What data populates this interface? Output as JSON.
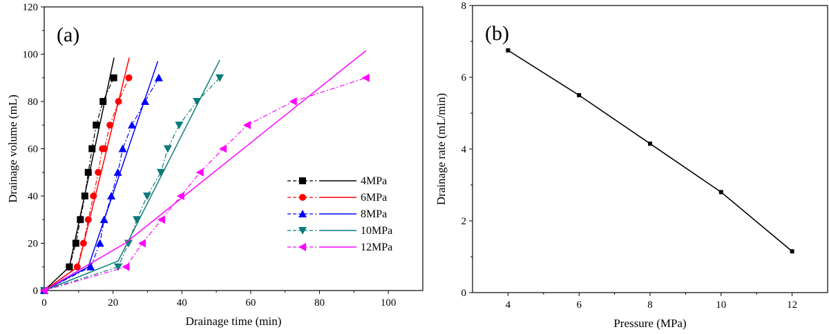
{
  "chart_data": [
    {
      "type": "line",
      "panel_label": "(a)",
      "xlabel": "Drainage time (min)",
      "ylabel": "Drainage volume (mL)",
      "xlim": [
        0,
        110
      ],
      "ylim": [
        0,
        120
      ],
      "xticks": [
        0,
        20,
        40,
        60,
        80,
        100
      ],
      "yticks": [
        0,
        20,
        40,
        60,
        80,
        100,
        120
      ],
      "legend_position": "center-right",
      "series": [
        {
          "name": "4MPa",
          "color": "#000000",
          "marker": "square",
          "x": [
            0,
            7.3,
            9.2,
            10.5,
            11.8,
            12.8,
            13.9,
            15.1,
            17.1,
            20.2
          ],
          "y": [
            0,
            10,
            20,
            30,
            40,
            50,
            60,
            70,
            80,
            90
          ],
          "fit": {
            "x": [
              0,
              7.3,
              20.3
            ],
            "y": [
              0,
              10,
              98.5
            ]
          }
        },
        {
          "name": "6MPa",
          "color": "#ff0000",
          "marker": "circle",
          "x": [
            0,
            9.6,
            11.4,
            12.8,
            14.3,
            15.7,
            16.9,
            17.5,
            19.1,
            21.6,
            24.6
          ],
          "y": [
            0,
            10,
            20,
            30,
            40,
            50,
            60,
            60,
            70,
            80,
            90
          ],
          "fit": {
            "x": [
              0,
              9.8,
              24.7
            ],
            "y": [
              0,
              10,
              98.5
            ]
          }
        },
        {
          "name": "8MPa",
          "color": "#0000ff",
          "marker": "triangle-up",
          "x": [
            0,
            13.5,
            16.2,
            17.4,
            19.5,
            21.4,
            22.8,
            25.5,
            29.3,
            33.3
          ],
          "y": [
            0,
            10,
            20,
            30,
            40,
            50,
            60,
            70,
            80,
            90
          ],
          "fit": {
            "x": [
              0,
              12.8,
              33
            ],
            "y": [
              0,
              10,
              97
            ]
          }
        },
        {
          "name": "10MPa",
          "color": "#0a7a7a",
          "marker": "triangle-down",
          "x": [
            0,
            21.5,
            24.5,
            26.9,
            29.9,
            33.9,
            35.9,
            39.2,
            44.4,
            51
          ],
          "y": [
            0,
            10,
            20,
            30,
            40,
            50,
            60,
            70,
            80,
            90
          ],
          "fit": {
            "x": [
              0,
              21.5,
              51
            ],
            "y": [
              0,
              12.5,
              97.5
            ]
          }
        },
        {
          "name": "12MPa",
          "color": "#ff00ff",
          "marker": "triangle-left",
          "x": [
            0,
            23.8,
            28.5,
            34.1,
            39.7,
            45.3,
            52,
            59,
            72.4,
            93.5
          ],
          "y": [
            0,
            10,
            20,
            30,
            40,
            50,
            60,
            70,
            80,
            90
          ],
          "fit": {
            "x": [
              0,
              23.5,
              93.5
            ],
            "y": [
              0,
              20,
              101.5
            ]
          }
        }
      ]
    },
    {
      "type": "line",
      "panel_label": "(b)",
      "xlabel": "Pressure (MPa)",
      "ylabel": "Drainage rate (mL/min)",
      "xlim": [
        3,
        13
      ],
      "ylim": [
        0,
        8
      ],
      "xticks": [
        4,
        6,
        8,
        10,
        12
      ],
      "yticks": [
        0,
        2,
        4,
        6,
        8
      ],
      "series": [
        {
          "name": "Drainage rate",
          "color": "#000000",
          "marker": "square",
          "x": [
            4,
            6,
            8,
            10,
            12
          ],
          "y": [
            6.75,
            5.5,
            4.15,
            2.8,
            1.15
          ]
        }
      ]
    }
  ]
}
